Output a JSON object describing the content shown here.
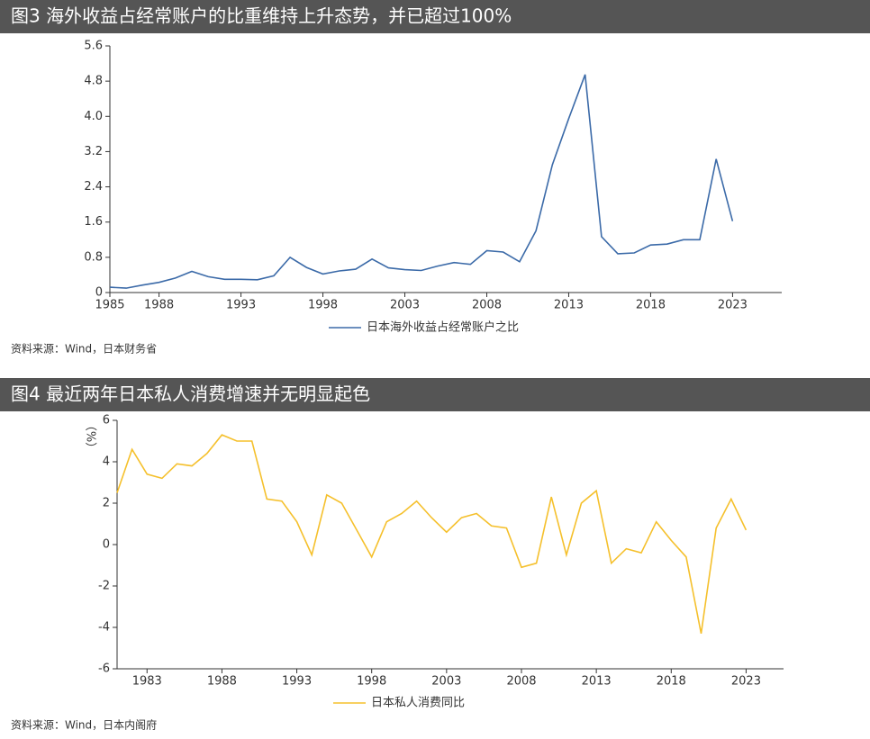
{
  "chart_data": [
    {
      "type": "line",
      "title": "图3 海外收益占经常账户的比重维持上升态势，并已超过100%",
      "x": [
        1985,
        1986,
        1987,
        1988,
        1989,
        1990,
        1991,
        1992,
        1993,
        1994,
        1995,
        1996,
        1997,
        1998,
        1999,
        2000,
        2001,
        2002,
        2003,
        2004,
        2005,
        2006,
        2007,
        2008,
        2009,
        2010,
        2011,
        2012,
        2013,
        2014,
        2015,
        2016,
        2017,
        2018,
        2019,
        2020,
        2021,
        2022,
        2023
      ],
      "series": [
        {
          "name": "日本海外收益占经常账户之比",
          "color": "#3b6aa8",
          "values": [
            0.12,
            0.1,
            0.17,
            0.23,
            0.33,
            0.48,
            0.36,
            0.3,
            0.3,
            0.29,
            0.38,
            0.8,
            0.57,
            0.42,
            0.49,
            0.53,
            0.76,
            0.56,
            0.52,
            0.5,
            0.6,
            0.68,
            0.64,
            0.95,
            0.92,
            0.7,
            1.4,
            2.9,
            3.95,
            4.95,
            1.27,
            0.88,
            0.9,
            1.08,
            1.1,
            1.2,
            1.2,
            3.03,
            1.62
          ]
        }
      ],
      "xlim": [
        1985,
        2026
      ],
      "xticks": [
        1985,
        1988,
        1993,
        1998,
        2003,
        2008,
        2013,
        2018,
        2023
      ],
      "ylim": [
        0,
        5.6
      ],
      "yticks": [
        0,
        0.8,
        1.6,
        2.4,
        3.2,
        {
          "value": 4,
          "label": "4.0"
        },
        4.8,
        5.6
      ],
      "source": "资料来源：Wind，日本财务省"
    },
    {
      "type": "line",
      "title": "图4 最近两年日本私人消费增速并无明显起色",
      "ylabel": "（%）",
      "x": [
        1981,
        1982,
        1983,
        1984,
        1985,
        1986,
        1987,
        1988,
        1989,
        1990,
        1991,
        1992,
        1993,
        1994,
        1995,
        1996,
        1997,
        1998,
        1999,
        2000,
        2001,
        2002,
        2003,
        2004,
        2005,
        2006,
        2007,
        2008,
        2009,
        2010,
        2011,
        2012,
        2013,
        2014,
        2015,
        2016,
        2017,
        2018,
        2019,
        2020,
        2021,
        2022,
        2023
      ],
      "series": [
        {
          "name": "日本私人消费同比",
          "color": "#f5c02c",
          "values": [
            2.5,
            4.6,
            3.4,
            3.2,
            3.9,
            3.8,
            4.4,
            5.3,
            5.0,
            5.0,
            2.2,
            2.1,
            1.1,
            -0.5,
            2.4,
            2.0,
            0.7,
            -0.6,
            1.1,
            1.5,
            2.1,
            1.3,
            0.6,
            1.3,
            1.5,
            0.9,
            0.8,
            -1.1,
            -0.9,
            2.3,
            -0.5,
            2.0,
            2.6,
            -0.9,
            -0.2,
            -0.4,
            1.1,
            0.2,
            -0.6,
            -4.3,
            0.8,
            2.2,
            0.7
          ]
        }
      ],
      "xlim": [
        1981,
        2025.5
      ],
      "xticks": [
        1983,
        1988,
        1993,
        1998,
        2003,
        2008,
        2013,
        2018,
        2023
      ],
      "ylim": [
        -6,
        6
      ],
      "yticks": [
        -6,
        -4,
        -2,
        0,
        2,
        4,
        6
      ],
      "source": "资料来源：Wind，日本内阁府"
    }
  ]
}
